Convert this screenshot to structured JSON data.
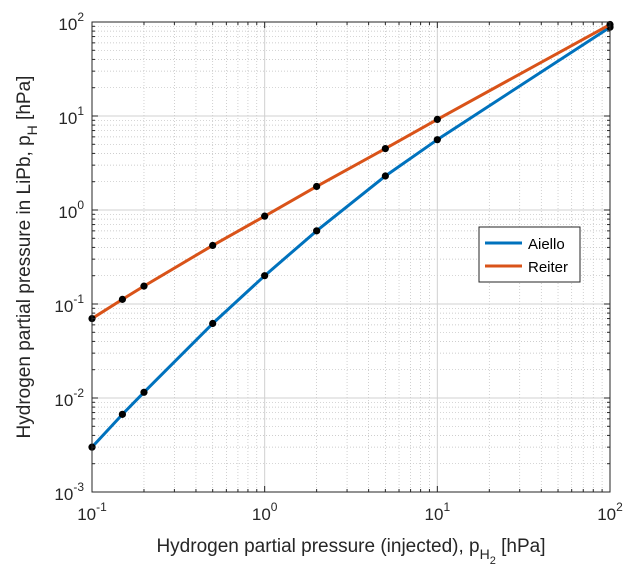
{
  "chart_data": {
    "type": "line",
    "xscale": "log",
    "yscale": "log",
    "xlim": [
      0.1,
      100
    ],
    "ylim": [
      0.001,
      100
    ],
    "grid": true,
    "minor_grid": true,
    "legend_position": "right",
    "xlabel": {
      "text": "Hydrogen partial pressure (injected), p",
      "sub": "H",
      "subsub": "2",
      "unit": " [hPa]"
    },
    "ylabel": {
      "text": "Hydrogen partial pressure in LiPb, p",
      "sub": "H",
      "unit": " [hPa]"
    },
    "xticks": [
      {
        "base": "10",
        "exp": "-1"
      },
      {
        "base": "10",
        "exp": "0"
      },
      {
        "base": "10",
        "exp": "1"
      },
      {
        "base": "10",
        "exp": "2"
      }
    ],
    "yticks": [
      {
        "base": "10",
        "exp": "-3"
      },
      {
        "base": "10",
        "exp": "-2"
      },
      {
        "base": "10",
        "exp": "-1"
      },
      {
        "base": "10",
        "exp": "0"
      },
      {
        "base": "10",
        "exp": "1"
      },
      {
        "base": "10",
        "exp": "2"
      }
    ],
    "marker_color": "#000000",
    "series": [
      {
        "name": "Aiello",
        "color": "#0072BD",
        "x": [
          0.1,
          0.15,
          0.2,
          0.5,
          1,
          2,
          5,
          10,
          100
        ],
        "y": [
          0.003,
          0.0067,
          0.0115,
          0.062,
          0.2,
          0.6,
          2.3,
          5.6,
          88
        ]
      },
      {
        "name": "Reiter",
        "color": "#D95319",
        "x": [
          0.1,
          0.15,
          0.2,
          0.5,
          1,
          2,
          5,
          10,
          100
        ],
        "y": [
          0.07,
          0.112,
          0.155,
          0.42,
          0.86,
          1.78,
          4.5,
          9.2,
          94
        ]
      }
    ]
  }
}
